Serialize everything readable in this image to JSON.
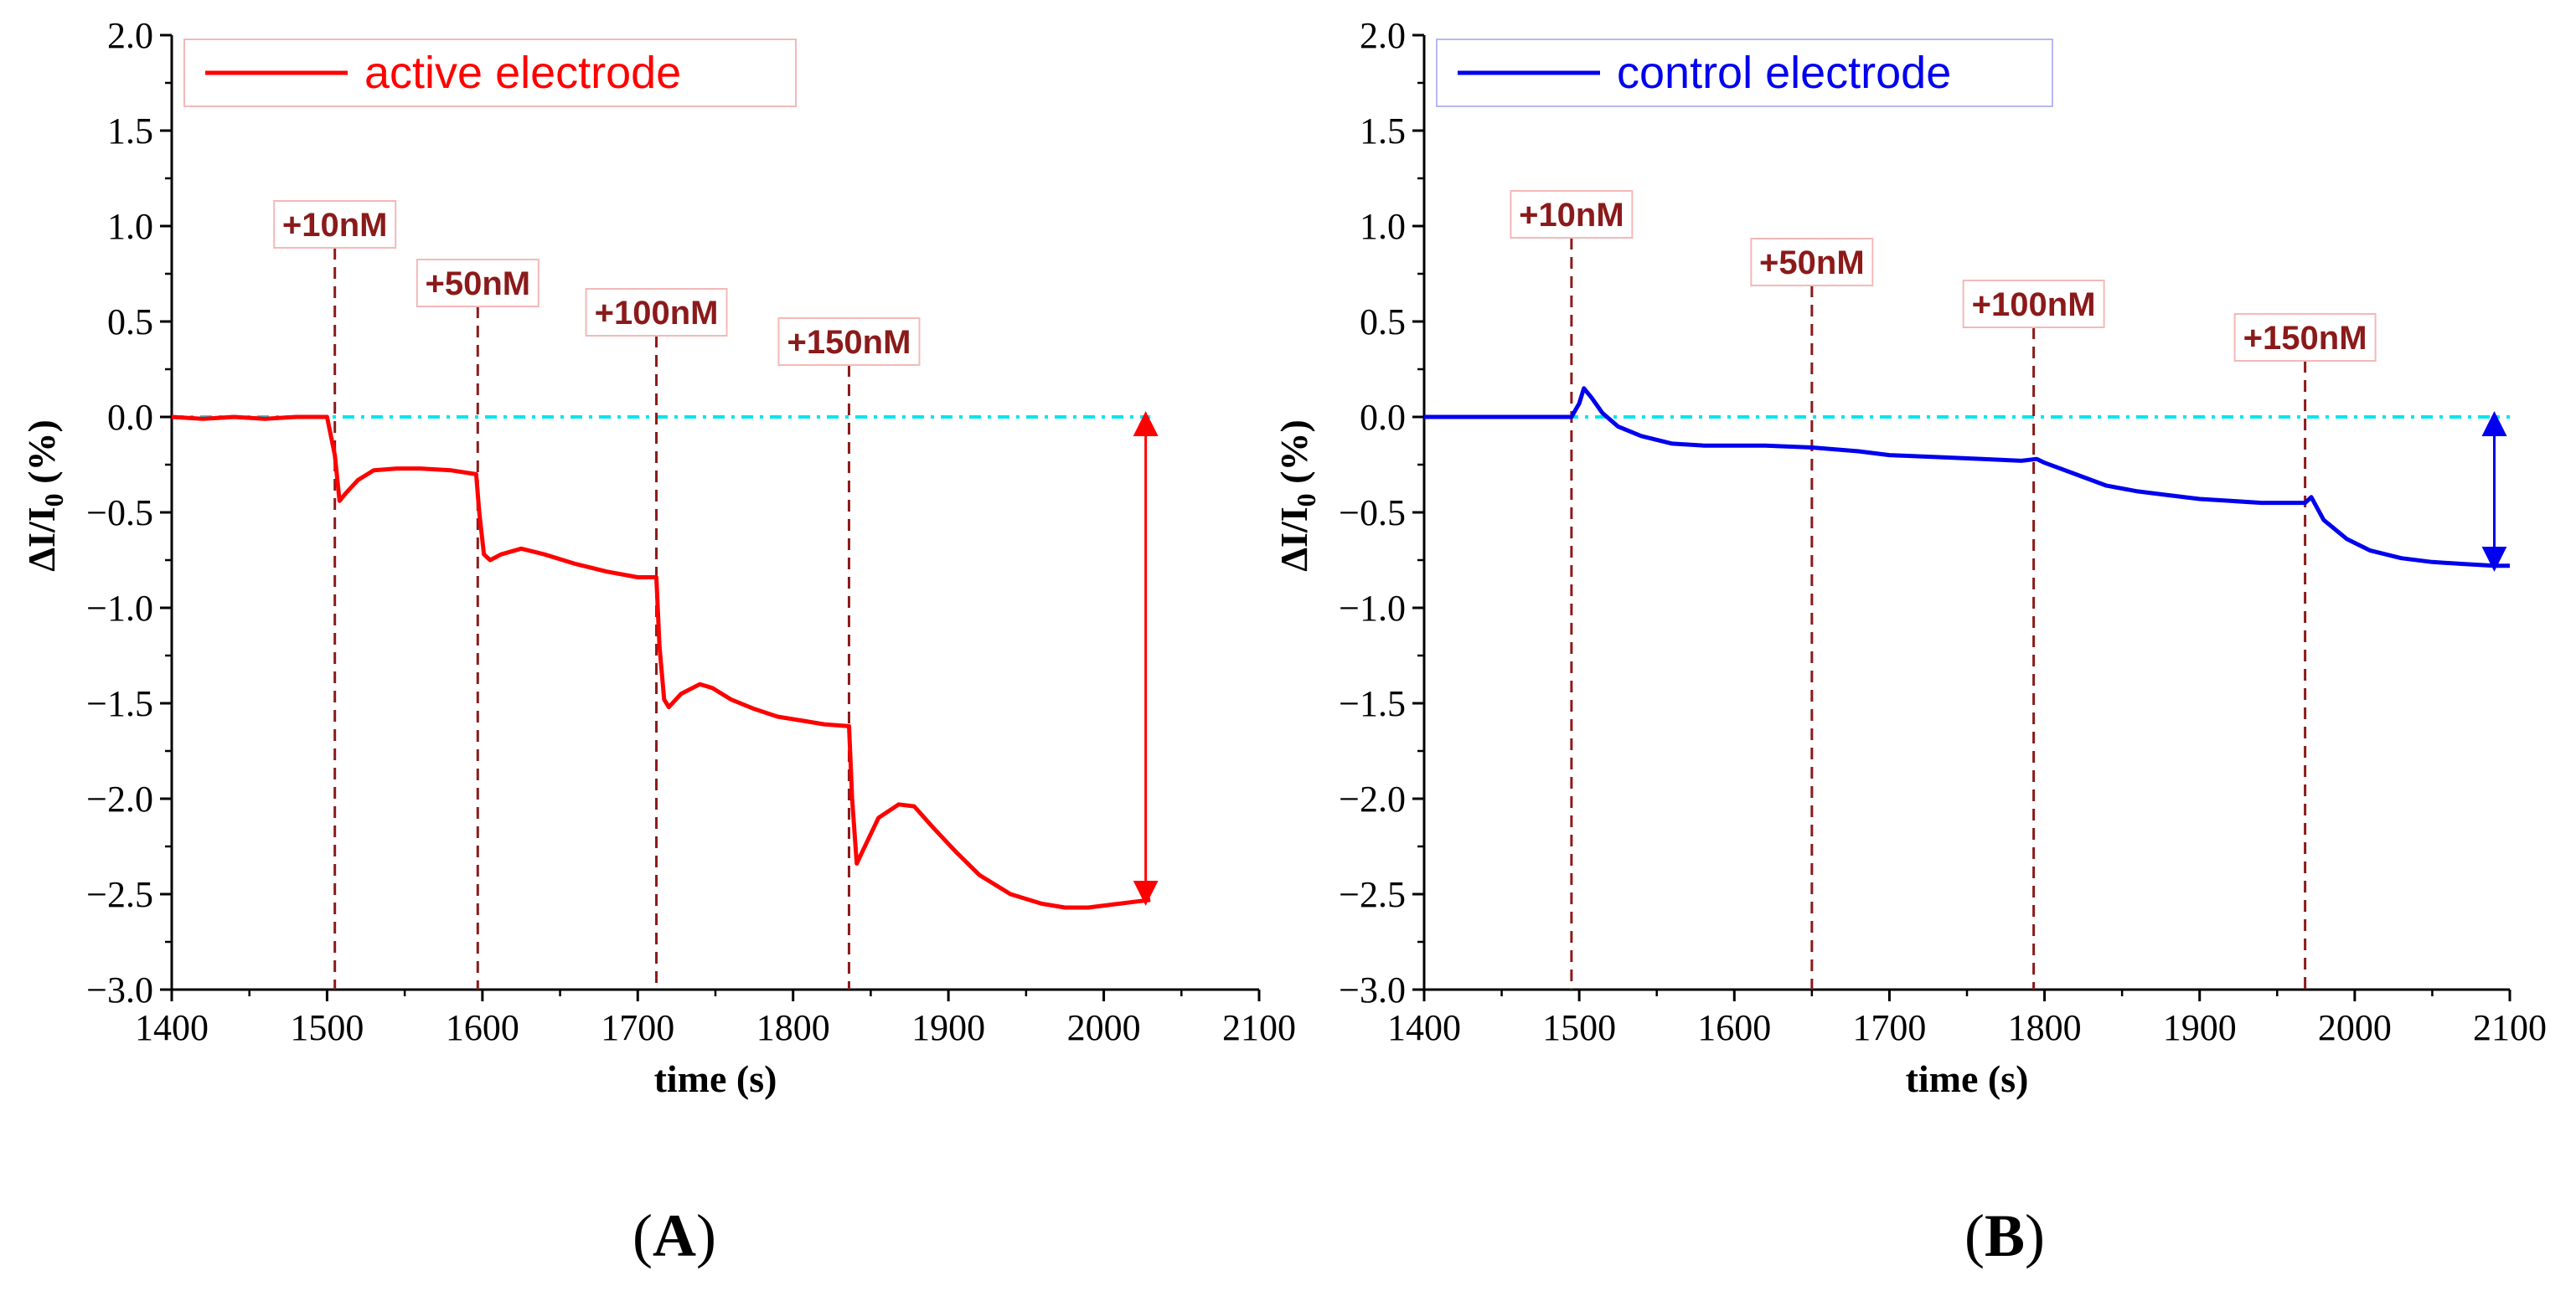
{
  "chart_data": [
    {
      "type": "line",
      "panel_label": "(A)",
      "panel_letter": "A",
      "xlabel": "time (s)",
      "ylabel": "ΔI/I",
      "ylabel_sub": "0",
      "ylabel_unit": " (%)",
      "xlim": [
        1400,
        2100
      ],
      "ylim": [
        -3.0,
        2.0
      ],
      "xticks": [
        1400,
        1500,
        1600,
        1700,
        1800,
        1900,
        2000,
        2100
      ],
      "yticks": [
        2.0,
        1.5,
        1.0,
        0.5,
        0.0,
        -0.5,
        -1.0,
        -1.5,
        -2.0,
        -2.5,
        -3.0
      ],
      "ytick_labels": [
        "2.0",
        "1.5",
        "1.0",
        "0.5",
        "0.0",
        "−0.5",
        "−1.0",
        "−1.5",
        "−2.0",
        "−2.5",
        "−3.0"
      ],
      "legend": {
        "label": "active electrode",
        "position": "top-left"
      },
      "series": [
        {
          "name": "active electrode",
          "color": "#ff0000",
          "x": [
            1400,
            1420,
            1440,
            1460,
            1480,
            1500,
            1505,
            1508,
            1512,
            1520,
            1530,
            1545,
            1560,
            1580,
            1596,
            1598,
            1601,
            1605,
            1612,
            1625,
            1640,
            1660,
            1680,
            1700,
            1712,
            1714,
            1717,
            1720,
            1728,
            1740,
            1748,
            1760,
            1775,
            1790,
            1805,
            1820,
            1836,
            1838,
            1841,
            1845,
            1855,
            1868,
            1878,
            1890,
            1905,
            1920,
            1940,
            1960,
            1975,
            1990,
            2010,
            2030
          ],
          "y": [
            0.0,
            -0.01,
            0.0,
            -0.01,
            0.0,
            0.0,
            -0.2,
            -0.44,
            -0.4,
            -0.33,
            -0.28,
            -0.27,
            -0.27,
            -0.28,
            -0.3,
            -0.5,
            -0.72,
            -0.75,
            -0.72,
            -0.69,
            -0.72,
            -0.77,
            -0.81,
            -0.84,
            -0.84,
            -1.2,
            -1.48,
            -1.52,
            -1.45,
            -1.4,
            -1.42,
            -1.48,
            -1.53,
            -1.57,
            -1.59,
            -1.61,
            -1.62,
            -2.0,
            -2.34,
            -2.27,
            -2.1,
            -2.03,
            -2.04,
            -2.15,
            -2.28,
            -2.4,
            -2.5,
            -2.55,
            -2.57,
            -2.57,
            -2.55,
            -2.53
          ]
        }
      ],
      "baseline": {
        "y": 0.0,
        "color": "#00e5ee"
      },
      "annotations": [
        {
          "label": "+10nM",
          "x": 1505
        },
        {
          "label": "+50nM",
          "x": 1597
        },
        {
          "label": "+100nM",
          "x": 1712
        },
        {
          "label": "+150nM",
          "x": 1836
        }
      ],
      "arrow": {
        "x": 2027,
        "y_from": 0.0,
        "y_to": -2.53,
        "color": "#ff0000"
      }
    },
    {
      "type": "line",
      "panel_label": "(B)",
      "panel_letter": "B",
      "xlabel": "time (s)",
      "ylabel": "ΔI/I",
      "ylabel_sub": "0",
      "ylabel_unit": " (%)",
      "xlim": [
        1400,
        2100
      ],
      "ylim": [
        -3.0,
        2.0
      ],
      "xticks": [
        1400,
        1500,
        1600,
        1700,
        1800,
        1900,
        2000,
        2100
      ],
      "yticks": [
        2.0,
        1.5,
        1.0,
        0.5,
        0.0,
        -0.5,
        -1.0,
        -1.5,
        -2.0,
        -2.5,
        -3.0
      ],
      "ytick_labels": [
        "2.0",
        "1.5",
        "1.0",
        "0.5",
        "0.0",
        "−0.5",
        "−1.0",
        "−1.5",
        "−2.0",
        "−2.5",
        "−3.0"
      ],
      "legend": {
        "label": "control electrode",
        "position": "top-left"
      },
      "series": [
        {
          "name": "control electrode",
          "color": "#0000ee",
          "x": [
            1400,
            1430,
            1460,
            1495,
            1500,
            1503,
            1508,
            1515,
            1525,
            1540,
            1560,
            1580,
            1600,
            1620,
            1650,
            1680,
            1700,
            1730,
            1760,
            1785,
            1795,
            1800,
            1820,
            1840,
            1860,
            1880,
            1900,
            1920,
            1940,
            1960,
            1968,
            1972,
            1980,
            1995,
            2010,
            2030,
            2050,
            2070,
            2090,
            2100
          ],
          "y": [
            0.0,
            0.0,
            0.0,
            0.0,
            0.07,
            0.15,
            0.1,
            0.02,
            -0.05,
            -0.1,
            -0.14,
            -0.15,
            -0.15,
            -0.15,
            -0.16,
            -0.18,
            -0.2,
            -0.21,
            -0.22,
            -0.23,
            -0.22,
            -0.24,
            -0.3,
            -0.36,
            -0.39,
            -0.41,
            -0.43,
            -0.44,
            -0.45,
            -0.45,
            -0.45,
            -0.42,
            -0.54,
            -0.64,
            -0.7,
            -0.74,
            -0.76,
            -0.77,
            -0.78,
            -0.78
          ]
        }
      ],
      "baseline": {
        "y": 0.0,
        "color": "#00e5ee"
      },
      "annotations": [
        {
          "label": "+10nM",
          "x": 1495
        },
        {
          "label": "+50nM",
          "x": 1650
        },
        {
          "label": "+100nM",
          "x": 1793
        },
        {
          "label": "+150nM",
          "x": 1968
        }
      ],
      "arrow": {
        "x": 2090,
        "y_from": 0.0,
        "y_to": -0.78,
        "color": "#0000ee"
      }
    }
  ]
}
